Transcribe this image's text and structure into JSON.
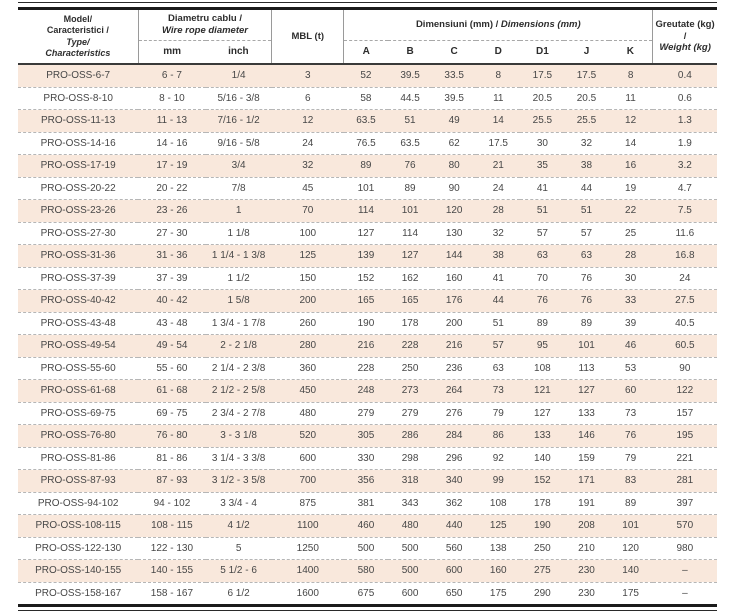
{
  "table": {
    "header": {
      "model": {
        "lines_ro": [
          "Model/",
          "Caracteristici /"
        ],
        "lines_en": [
          "Type/",
          "Characteristics"
        ]
      },
      "diameter": {
        "title_ro": "Diametru cablu /",
        "title_en": "Wire rope diameter",
        "sub": [
          "mm",
          "inch"
        ]
      },
      "mbl": "MBL (t)",
      "dimensions": {
        "title_ro": "Dimensiuni (mm) /",
        "title_en": "Dimensions (mm)",
        "sub": [
          "A",
          "B",
          "C",
          "D",
          "D1",
          "J",
          "K"
        ]
      },
      "weight": {
        "title_ro": "Greutate (kg) /",
        "title_en": "Weight (kg)"
      }
    },
    "column_keys": [
      "model",
      "mm",
      "inch",
      "mbl",
      "dim-a",
      "dim-b",
      "dim-c",
      "dim-d",
      "dim-d1",
      "dim-j",
      "dim-k",
      "weight"
    ],
    "rows": [
      [
        "PRO-OSS-6-7",
        "6 - 7",
        "1/4",
        "3",
        "52",
        "39.5",
        "33.5",
        "8",
        "17.5",
        "17.5",
        "8",
        "0.4"
      ],
      [
        "PRO-OSS-8-10",
        "8 - 10",
        "5/16 - 3/8",
        "6",
        "58",
        "44.5",
        "39.5",
        "11",
        "20.5",
        "20.5",
        "11",
        "0.6"
      ],
      [
        "PRO-OSS-11-13",
        "11 - 13",
        "7/16 - 1/2",
        "12",
        "63.5",
        "51",
        "49",
        "14",
        "25.5",
        "25.5",
        "12",
        "1.3"
      ],
      [
        "PRO-OSS-14-16",
        "14 - 16",
        "9/16 - 5/8",
        "24",
        "76.5",
        "63.5",
        "62",
        "17.5",
        "30",
        "32",
        "14",
        "1.9"
      ],
      [
        "PRO-OSS-17-19",
        "17 - 19",
        "3/4",
        "32",
        "89",
        "76",
        "80",
        "21",
        "35",
        "38",
        "16",
        "3.2"
      ],
      [
        "PRO-OSS-20-22",
        "20 - 22",
        "7/8",
        "45",
        "101",
        "89",
        "90",
        "24",
        "41",
        "44",
        "19",
        "4.7"
      ],
      [
        "PRO-OSS-23-26",
        "23 - 26",
        "1",
        "70",
        "114",
        "101",
        "120",
        "28",
        "51",
        "51",
        "22",
        "7.5"
      ],
      [
        "PRO-OSS-27-30",
        "27 - 30",
        "1 1/8",
        "100",
        "127",
        "114",
        "130",
        "32",
        "57",
        "57",
        "25",
        "11.6"
      ],
      [
        "PRO-OSS-31-36",
        "31 - 36",
        "1 1/4 - 1 3/8",
        "125",
        "139",
        "127",
        "144",
        "38",
        "63",
        "63",
        "28",
        "16.8"
      ],
      [
        "PRO-OSS-37-39",
        "37 - 39",
        "1 1/2",
        "150",
        "152",
        "162",
        "160",
        "41",
        "70",
        "76",
        "30",
        "24"
      ],
      [
        "PRO-OSS-40-42",
        "40 - 42",
        "1 5/8",
        "200",
        "165",
        "165",
        "176",
        "44",
        "76",
        "76",
        "33",
        "27.5"
      ],
      [
        "PRO-OSS-43-48",
        "43 - 48",
        "1 3/4 - 1 7/8",
        "260",
        "190",
        "178",
        "200",
        "51",
        "89",
        "89",
        "39",
        "40.5"
      ],
      [
        "PRO-OSS-49-54",
        "49 - 54",
        "2 - 2 1/8",
        "280",
        "216",
        "228",
        "216",
        "57",
        "95",
        "101",
        "46",
        "60.5"
      ],
      [
        "PRO-OSS-55-60",
        "55 - 60",
        "2 1/4 - 2 3/8",
        "360",
        "228",
        "250",
        "236",
        "63",
        "108",
        "113",
        "53",
        "90"
      ],
      [
        "PRO-OSS-61-68",
        "61 - 68",
        "2 1/2 - 2 5/8",
        "450",
        "248",
        "273",
        "264",
        "73",
        "121",
        "127",
        "60",
        "122"
      ],
      [
        "PRO-OSS-69-75",
        "69 - 75",
        "2 3/4 - 2 7/8",
        "480",
        "279",
        "279",
        "276",
        "79",
        "127",
        "133",
        "73",
        "157"
      ],
      [
        "PRO-OSS-76-80",
        "76 - 80",
        "3 - 3 1/8",
        "520",
        "305",
        "286",
        "284",
        "86",
        "133",
        "146",
        "76",
        "195"
      ],
      [
        "PRO-OSS-81-86",
        "81 - 86",
        "3 1/4 - 3 3/8",
        "600",
        "330",
        "298",
        "296",
        "92",
        "140",
        "159",
        "79",
        "221"
      ],
      [
        "PRO-OSS-87-93",
        "87 - 93",
        "3 1/2 - 3 5/8",
        "700",
        "356",
        "318",
        "340",
        "99",
        "152",
        "171",
        "83",
        "281"
      ],
      [
        "PRO-OSS-94-102",
        "94 - 102",
        "3 3/4 - 4",
        "875",
        "381",
        "343",
        "362",
        "108",
        "178",
        "191",
        "89",
        "397"
      ],
      [
        "PRO-OSS-108-115",
        "108 - 115",
        "4 1/2",
        "1100",
        "460",
        "480",
        "440",
        "125",
        "190",
        "208",
        "101",
        "570"
      ],
      [
        "PRO-OSS-122-130",
        "122 - 130",
        "5",
        "1250",
        "500",
        "500",
        "560",
        "138",
        "250",
        "210",
        "120",
        "980"
      ],
      [
        "PRO-OSS-140-155",
        "140 - 155",
        "5 1/2 - 6",
        "1400",
        "580",
        "500",
        "600",
        "160",
        "275",
        "230",
        "140",
        "–"
      ],
      [
        "PRO-OSS-158-167",
        "158 - 167",
        "6 1/2",
        "1600",
        "675",
        "600",
        "650",
        "175",
        "290",
        "230",
        "175",
        "–"
      ]
    ],
    "colors": {
      "row_alt": "#f9e8dc",
      "header_text": "#2d2d2d",
      "body_text": "#474747",
      "dashed_line": "#b6b6b6",
      "frame_line": "#1b1b1b"
    }
  }
}
